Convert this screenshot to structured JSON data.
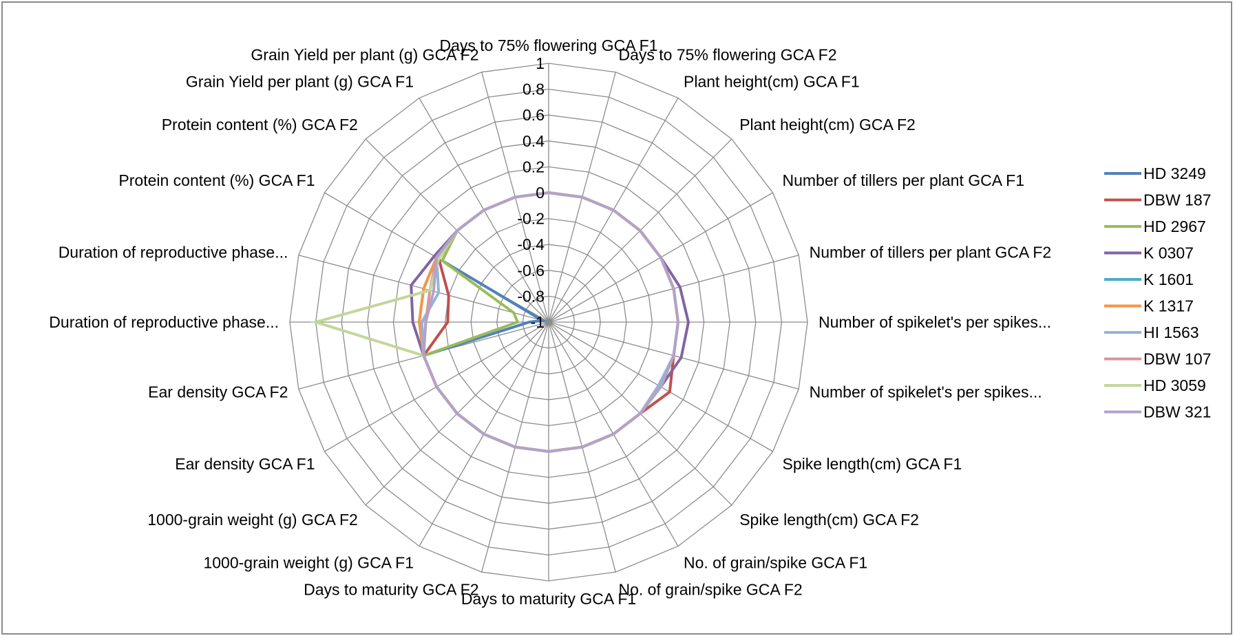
{
  "chart_data": {
    "type": "radar",
    "title": "",
    "rlim": [
      -1,
      1
    ],
    "r_ticks": [
      "1",
      "0.8",
      "0.6",
      "0.4",
      "0.2",
      "0",
      "-0.2",
      "-0.4",
      "-0.6",
      "-0.8",
      "-1"
    ],
    "legend_position": "right",
    "grid": true,
    "categories": [
      "Days to 75% flowering GCA F1",
      "Days to 75% flowering GCA F2",
      "Plant height(cm) GCA F1",
      "Plant height(cm) GCA F2",
      "Number of  tillers per plant GCA F1",
      "Number of  tillers per plant GCA F2",
      "Number of spikelet's per spikes...",
      "Number of spikelet's per spikes...",
      "Spike length(cm) GCA F1",
      "Spike length(cm) GCA F2",
      "No. of grain/spike GCA F1",
      "No. of grain/spike GCA F2",
      "Days to maturity GCA F1",
      "Days to maturity GCA F2",
      "1000-grain weight (g) GCA F1",
      "1000-grain weight (g) GCA F2",
      "Ear density GCA F1",
      "Ear density GCA F2",
      "Duration of reproductive phase...",
      "Duration of reproductive phase...",
      "Protein content (%) GCA F1",
      "Protein content (%) GCA F2",
      "Grain Yield per plant (g) GCA F1",
      "Grain Yield per plant (g) GCA F2"
    ],
    "series": [
      {
        "name": "HD 3249",
        "color": "#4f81bd",
        "values": [
          0,
          0,
          0,
          0,
          0,
          0,
          0,
          0,
          0,
          0,
          0,
          0,
          0,
          0,
          0,
          0,
          0,
          0,
          -0.85,
          -0.95,
          -0.05,
          0,
          0,
          0
        ]
      },
      {
        "name": "DBW 187",
        "color": "#c0504d",
        "values": [
          0,
          0,
          0,
          0,
          0,
          0,
          0,
          0,
          0.08,
          0,
          0,
          0,
          0,
          0,
          0,
          0,
          0,
          0,
          -0.22,
          -0.2,
          -0.02,
          0,
          0,
          0
        ]
      },
      {
        "name": "HD 2967",
        "color": "#9bbb59",
        "values": [
          0,
          0,
          0,
          0,
          0,
          0,
          0,
          0,
          0,
          0,
          0,
          0,
          0,
          0,
          0,
          0,
          0,
          0,
          -0.76,
          -0.72,
          -0.05,
          0,
          0,
          0
        ]
      },
      {
        "name": "K 0307",
        "color": "#8064a2",
        "values": [
          0,
          0,
          0,
          0,
          0,
          0.05,
          0.08,
          0.06,
          0,
          0,
          0,
          0,
          0,
          0,
          0,
          0,
          0,
          0,
          0.05,
          0.1,
          0.02,
          0,
          0,
          0
        ]
      },
      {
        "name": "K 1601",
        "color": "#4bacc6",
        "values": [
          0,
          0,
          0,
          0,
          0,
          0,
          0,
          0,
          0,
          0,
          0,
          0,
          0,
          0,
          0,
          0,
          0,
          0,
          0,
          0,
          0,
          0,
          0,
          0
        ]
      },
      {
        "name": "K 1317",
        "color": "#f79646",
        "values": [
          0,
          0,
          0,
          0,
          0,
          0,
          0,
          0,
          0,
          0,
          0,
          0,
          0,
          0,
          0,
          0,
          0,
          0,
          0,
          0,
          0,
          0,
          0,
          0
        ]
      },
      {
        "name": "HI 1563",
        "color": "#95b3d7",
        "values": [
          0,
          0,
          0,
          0,
          0,
          0,
          0,
          0,
          -0.02,
          0,
          0,
          0,
          0,
          0,
          0,
          0,
          0,
          0,
          -0.02,
          -0.12,
          0,
          0,
          0,
          0
        ]
      },
      {
        "name": "DBW 107",
        "color": "#d99694",
        "values": [
          0,
          0,
          0,
          0,
          0,
          0,
          0,
          0,
          0,
          0,
          0,
          0,
          0,
          0,
          0,
          0,
          0,
          0,
          -0.05,
          -0.05,
          0,
          0,
          0,
          0
        ]
      },
      {
        "name": "HD 3059",
        "color": "#c3d69b",
        "values": [
          0,
          0,
          0,
          0,
          0,
          0,
          0,
          0,
          0,
          0,
          0,
          0,
          0,
          0,
          0,
          0,
          0,
          0,
          0.8,
          -0.05,
          -0.02,
          0,
          0,
          0
        ]
      },
      {
        "name": "DBW 321",
        "color": "#b3a2c7",
        "values": [
          0,
          0,
          0,
          0,
          0,
          0,
          0,
          0,
          0,
          0,
          0,
          0,
          0,
          0,
          0,
          0,
          0,
          0,
          -0.05,
          -0.08,
          0,
          0,
          0,
          0
        ]
      }
    ]
  }
}
